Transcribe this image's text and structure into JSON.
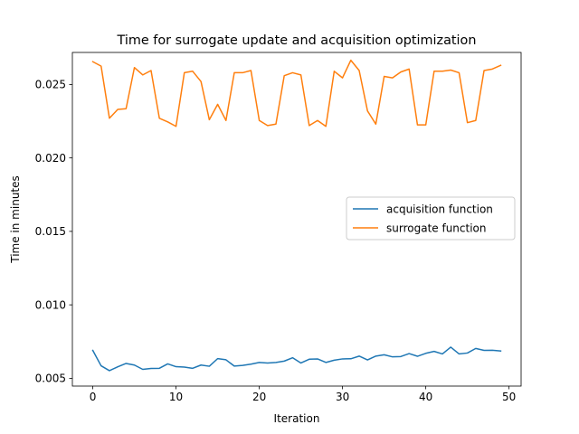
{
  "chart_data": {
    "type": "line",
    "title": "Time for surrogate update and acquisition optimization",
    "xlabel": "Iteration",
    "ylabel": "Time in minutes",
    "xlim": [
      -2.45,
      51.45
    ],
    "ylim": [
      0.00447,
      0.02718
    ],
    "xticks": [
      0,
      10,
      20,
      30,
      40,
      50
    ],
    "xtick_labels": [
      "0",
      "10",
      "20",
      "30",
      "40",
      "50"
    ],
    "yticks": [
      0.005,
      0.01,
      0.015,
      0.02,
      0.025
    ],
    "ytick_labels": [
      "0.005",
      "0.010",
      "0.015",
      "0.020",
      "0.025"
    ],
    "grid": false,
    "legend_position": "center-right",
    "x": [
      0,
      1,
      2,
      3,
      4,
      5,
      6,
      7,
      8,
      9,
      10,
      11,
      12,
      13,
      14,
      15,
      16,
      17,
      18,
      19,
      20,
      21,
      22,
      23,
      24,
      25,
      26,
      27,
      28,
      29,
      30,
      31,
      32,
      33,
      34,
      35,
      36,
      37,
      38,
      39,
      40,
      41,
      42,
      43,
      44,
      45,
      46,
      47,
      48,
      49
    ],
    "series": [
      {
        "name": "acquisition function",
        "color": "#1f77b4",
        "values": [
          0.0069,
          0.00585,
          0.00552,
          0.00578,
          0.00601,
          0.0059,
          0.00561,
          0.00567,
          0.00568,
          0.00598,
          0.00579,
          0.00576,
          0.00568,
          0.0059,
          0.00582,
          0.00634,
          0.00626,
          0.00583,
          0.00588,
          0.00596,
          0.00608,
          0.00604,
          0.00608,
          0.00617,
          0.0064,
          0.00604,
          0.0063,
          0.00632,
          0.00608,
          0.00623,
          0.00632,
          0.00633,
          0.00651,
          0.00625,
          0.00651,
          0.0066,
          0.00646,
          0.00648,
          0.00668,
          0.0065,
          0.0067,
          0.00683,
          0.00666,
          0.00712,
          0.00666,
          0.00672,
          0.00703,
          0.0069,
          0.00691,
          0.00686
        ]
      },
      {
        "name": "surrogate function",
        "color": "#ff7f0e",
        "values": [
          0.02655,
          0.02625,
          0.0227,
          0.0233,
          0.02335,
          0.02615,
          0.02565,
          0.02595,
          0.0227,
          0.02245,
          0.02215,
          0.0258,
          0.0259,
          0.0252,
          0.0226,
          0.02365,
          0.02255,
          0.0258,
          0.0258,
          0.02595,
          0.02255,
          0.0222,
          0.0223,
          0.0256,
          0.0258,
          0.02565,
          0.0222,
          0.02255,
          0.02215,
          0.0259,
          0.02545,
          0.02665,
          0.02595,
          0.0232,
          0.0223,
          0.02555,
          0.02545,
          0.02585,
          0.02605,
          0.02225,
          0.02225,
          0.0259,
          0.0259,
          0.02598,
          0.0258,
          0.0224,
          0.02255,
          0.02595,
          0.02605,
          0.0263
        ]
      }
    ]
  }
}
